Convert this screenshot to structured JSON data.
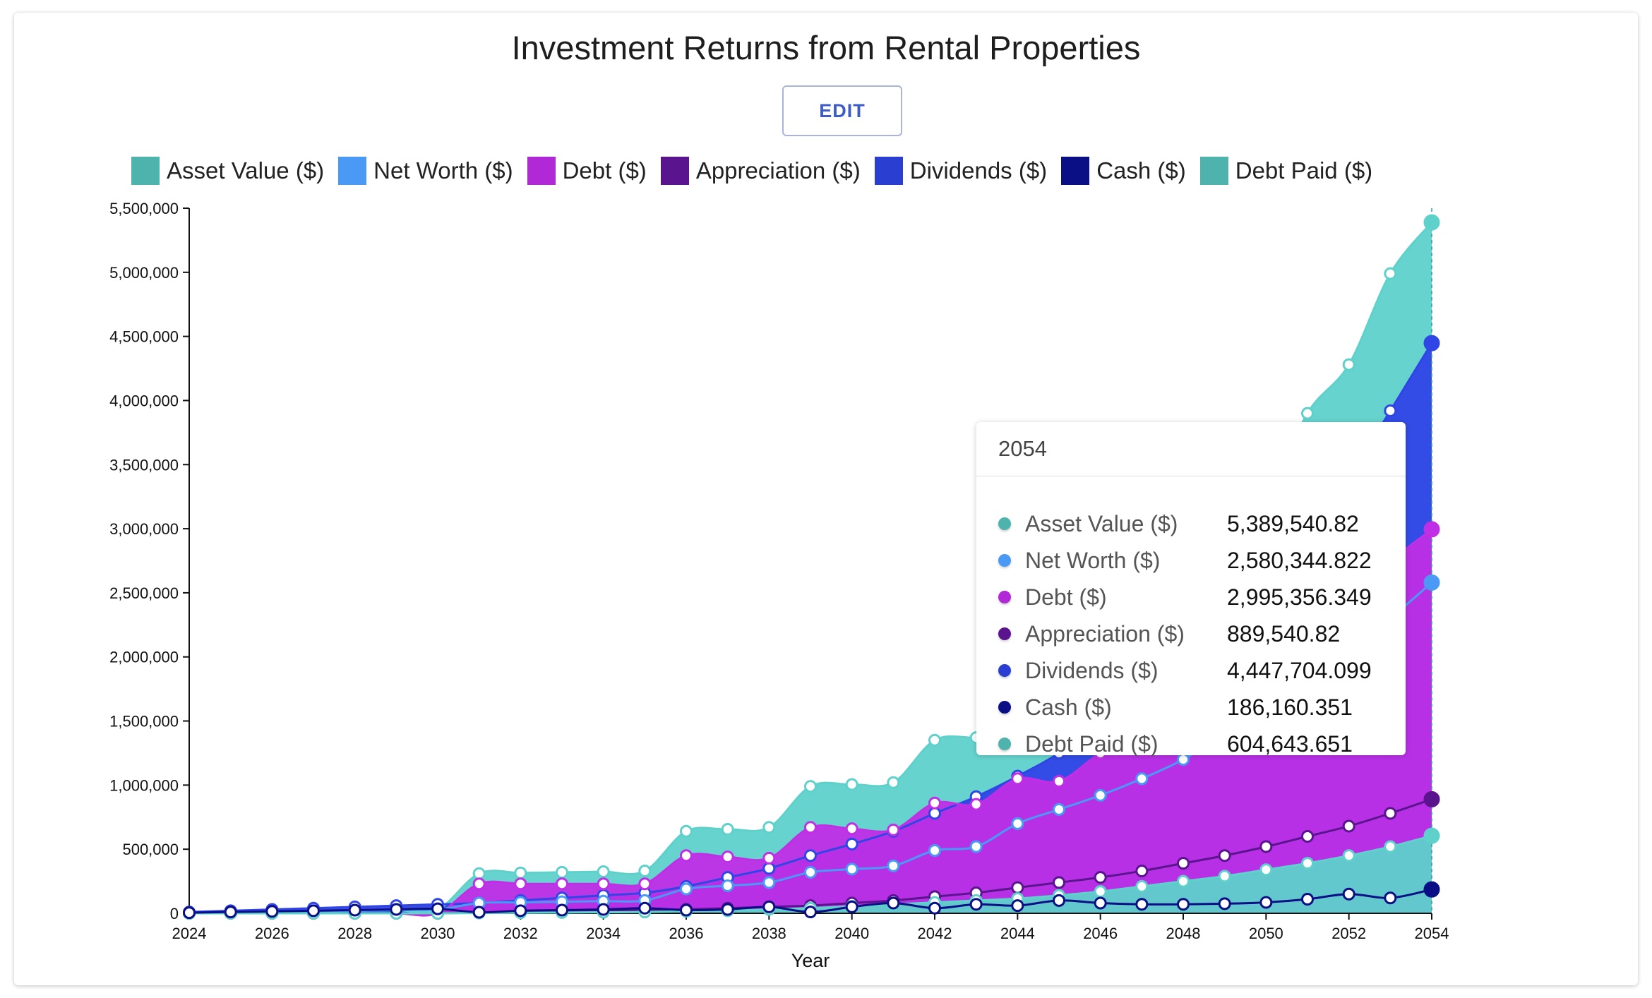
{
  "title": "Investment Returns from Rental Properties",
  "edit_label": "EDIT",
  "legend": [
    {
      "label": "Asset Value ($)",
      "color": "#4fb3ad"
    },
    {
      "label": "Net Worth ($)",
      "color": "#4a9af5"
    },
    {
      "label": "Debt ($)",
      "color": "#b129d6"
    },
    {
      "label": "Appreciation ($)",
      "color": "#5a148e"
    },
    {
      "label": "Dividends ($)",
      "color": "#2a3fd1"
    },
    {
      "label": "Cash ($)",
      "color": "#0a0f85"
    },
    {
      "label": "Debt Paid ($)",
      "color": "#4fb3ad"
    }
  ],
  "tooltip": {
    "year": "2054",
    "rows": [
      {
        "label": "Asset Value ($)",
        "value": "5,389,540.82",
        "color": "#4fb3ad"
      },
      {
        "label": "Net Worth ($)",
        "value": "2,580,344.822",
        "color": "#4a9af5"
      },
      {
        "label": "Debt ($)",
        "value": "2,995,356.349",
        "color": "#b129d6"
      },
      {
        "label": "Appreciation ($)",
        "value": "889,540.82",
        "color": "#5a148e"
      },
      {
        "label": "Dividends ($)",
        "value": "4,447,704.099",
        "color": "#2a3fd1"
      },
      {
        "label": "Cash ($)",
        "value": "186,160.351",
        "color": "#0a0f85"
      },
      {
        "label": "Debt Paid ($)",
        "value": "604,643.651",
        "color": "#4fb3ad"
      }
    ]
  },
  "chart_data": {
    "type": "area",
    "xlabel": "Year",
    "ylabel": "",
    "xlim": [
      2024,
      2054
    ],
    "ylim": [
      0,
      5500000
    ],
    "y_ticks": [
      "0",
      "500,000",
      "1,000,000",
      "1,500,000",
      "2,000,000",
      "2,500,000",
      "3,000,000",
      "3,500,000",
      "4,000,000",
      "4,500,000",
      "5,000,000",
      "5,500,000"
    ],
    "x_ticks": [
      "2024",
      "2026",
      "2028",
      "2030",
      "2032",
      "2034",
      "2036",
      "2038",
      "2040",
      "2042",
      "2044",
      "2046",
      "2048",
      "2050",
      "2052",
      "2054"
    ],
    "x": [
      2024,
      2025,
      2026,
      2027,
      2028,
      2029,
      2030,
      2031,
      2032,
      2033,
      2034,
      2035,
      2036,
      2037,
      2038,
      2039,
      2040,
      2041,
      2042,
      2043,
      2044,
      2045,
      2046,
      2047,
      2048,
      2049,
      2050,
      2051,
      2052,
      2053,
      2054
    ],
    "series": [
      {
        "name": "Asset Value ($)",
        "color": "#5ed1cb",
        "area": true,
        "values": [
          0,
          5000,
          10000,
          15000,
          20000,
          25000,
          30000,
          310000,
          315000,
          320000,
          325000,
          330000,
          640000,
          655000,
          670000,
          990000,
          1005000,
          1020000,
          1350000,
          1370000,
          1390000,
          1500000,
          1700000,
          2000000,
          2400000,
          2700000,
          3200000,
          3900000,
          4280000,
          4990000,
          5389540.82
        ]
      },
      {
        "name": "Dividends ($)",
        "color": "#2f45e6",
        "area": true,
        "values": [
          10000,
          20000,
          30000,
          40000,
          50000,
          60000,
          70000,
          80000,
          100000,
          120000,
          140000,
          160000,
          210000,
          280000,
          350000,
          450000,
          540000,
          640000,
          780000,
          910000,
          1070000,
          1250000,
          1500000,
          1700000,
          1950000,
          2200000,
          2500000,
          2900000,
          3400000,
          3920000,
          4447704.099
        ]
      },
      {
        "name": "Debt ($)",
        "color": "#c02ee6",
        "area": true,
        "values": [
          0,
          0,
          0,
          0,
          0,
          0,
          0,
          230000,
          230000,
          230000,
          230000,
          230000,
          450000,
          440000,
          430000,
          670000,
          660000,
          650000,
          860000,
          850000,
          1050000,
          1030000,
          1250000,
          1400000,
          1600000,
          1800000,
          2000000,
          2250000,
          2500000,
          2750000,
          2995356.349
        ]
      },
      {
        "name": "Net Worth ($)",
        "color": "#4a9af5",
        "area": false,
        "values": [
          0,
          5000,
          10000,
          15000,
          20000,
          25000,
          30000,
          80000,
          85000,
          90000,
          95000,
          100000,
          190000,
          215000,
          240000,
          320000,
          345000,
          370000,
          490000,
          520000,
          700000,
          810000,
          920000,
          1050000,
          1200000,
          1400000,
          1600000,
          1800000,
          2050000,
          2300000,
          2580344.822
        ]
      },
      {
        "name": "Appreciation ($)",
        "color": "#5a148e",
        "area": false,
        "values": [
          0,
          0,
          0,
          0,
          0,
          0,
          0,
          5000,
          10000,
          15000,
          20000,
          25000,
          30000,
          40000,
          50000,
          60000,
          80000,
          100000,
          130000,
          160000,
          200000,
          240000,
          280000,
          330000,
          390000,
          450000,
          520000,
          600000,
          680000,
          780000,
          889540.82
        ]
      },
      {
        "name": "Debt Paid ($)",
        "color": "#5ed1cb",
        "area": true,
        "values": [
          0,
          0,
          0,
          0,
          0,
          0,
          0,
          2000,
          4000,
          6000,
          8000,
          10000,
          15000,
          20000,
          30000,
          40000,
          55000,
          70000,
          85000,
          100000,
          115000,
          140000,
          170000,
          210000,
          250000,
          290000,
          340000,
          390000,
          450000,
          520000,
          604643.651
        ]
      },
      {
        "name": "Cash ($)",
        "color": "#0a0f85",
        "area": false,
        "values": [
          5000,
          10000,
          15000,
          20000,
          25000,
          30000,
          35000,
          8000,
          20000,
          25000,
          30000,
          40000,
          25000,
          30000,
          50000,
          10000,
          50000,
          80000,
          40000,
          70000,
          60000,
          100000,
          80000,
          70000,
          70000,
          75000,
          85000,
          110000,
          150000,
          120000,
          186160.351
        ]
      }
    ]
  }
}
